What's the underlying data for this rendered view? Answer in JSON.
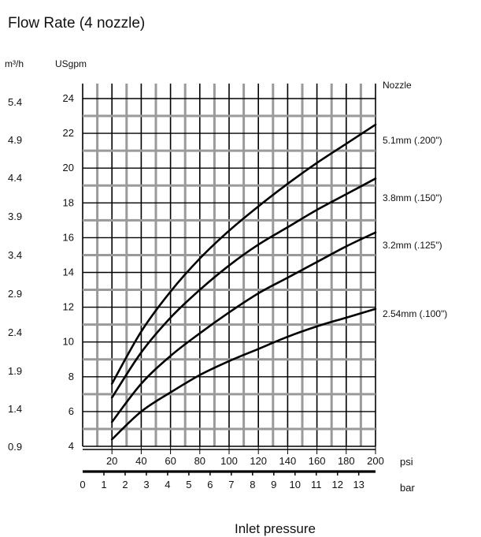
{
  "chart_data": {
    "type": "line",
    "title": "Flow Rate (4 nozzle)",
    "xlabel": "Inlet pressure",
    "y_units": {
      "left": "m³/h",
      "right": "USgpm"
    },
    "x_units": {
      "primary": "psi",
      "secondary": "bar"
    },
    "xlim": [
      0,
      200
    ],
    "ylim": [
      4,
      25
    ],
    "grid": true,
    "y_ticks": [
      4,
      6,
      8,
      10,
      12,
      14,
      16,
      18,
      20,
      22,
      24
    ],
    "y_tick_labels_metric": [
      "0.9",
      "1.4",
      "1.9",
      "2.4",
      "2.9",
      "3.4",
      "3.9",
      "4.4",
      "4.9",
      "5.4"
    ],
    "x_ticks_psi": [
      20,
      40,
      60,
      80,
      100,
      120,
      140,
      160,
      180,
      200
    ],
    "x_ticks_bar": [
      "0",
      "1",
      "2",
      "3",
      "4",
      "5",
      "6",
      "7",
      "8",
      "9",
      "10",
      "11",
      "12",
      "13"
    ],
    "legend_title": "Nozzle",
    "series": [
      {
        "name": "5.1mm  (.200\")",
        "x": [
          20,
          40,
          60,
          80,
          100,
          120,
          140,
          160,
          180,
          200
        ],
        "y": [
          7.6,
          10.6,
          12.9,
          14.8,
          16.4,
          17.8,
          19.1,
          20.3,
          21.4,
          22.5
        ]
      },
      {
        "name": "3.8mm  (.150\")",
        "x": [
          20,
          40,
          60,
          80,
          100,
          120,
          140,
          160,
          180,
          200
        ],
        "y": [
          6.8,
          9.4,
          11.4,
          13.0,
          14.4,
          15.6,
          16.6,
          17.6,
          18.5,
          19.4
        ]
      },
      {
        "name": "3.2mm  (.125\")",
        "x": [
          20,
          40,
          60,
          80,
          100,
          120,
          140,
          160,
          180,
          200
        ],
        "y": [
          5.4,
          7.6,
          9.2,
          10.5,
          11.7,
          12.8,
          13.7,
          14.6,
          15.5,
          16.3
        ]
      },
      {
        "name": "2.54mm  (.100\")",
        "x": [
          20,
          40,
          60,
          80,
          100,
          120,
          140,
          160,
          180,
          200
        ],
        "y": [
          4.4,
          6.0,
          7.1,
          8.1,
          8.9,
          9.6,
          10.3,
          10.9,
          11.4,
          11.9
        ]
      }
    ]
  }
}
